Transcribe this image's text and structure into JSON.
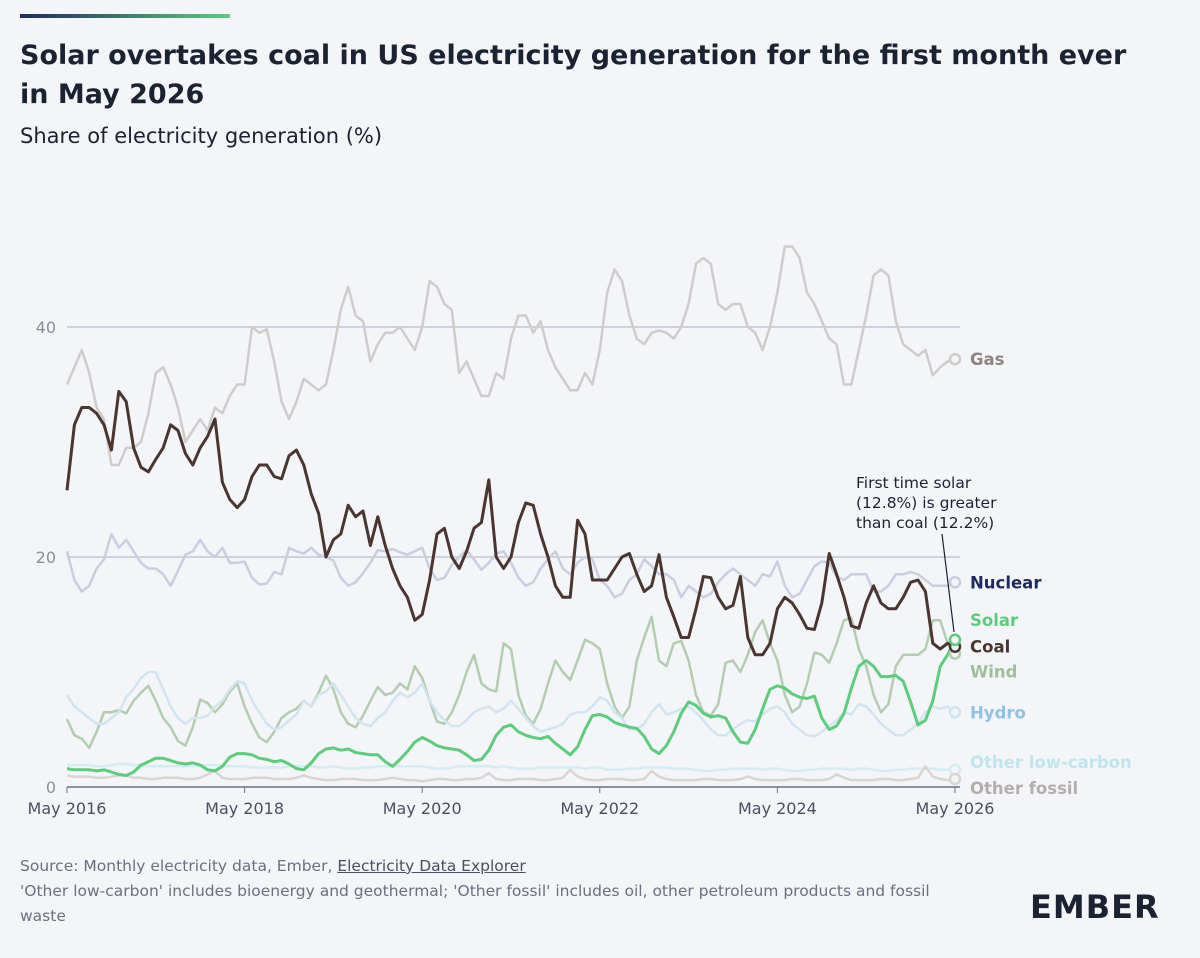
{
  "chart_data": {
    "type": "line",
    "title": "Solar overtakes coal in US electricity generation for the first month ever in May 2026",
    "subtitle": "Share of electricity generation (%)",
    "annotation": [
      "First time solar",
      "(12.8%) is greater",
      "than coal (12.2%)"
    ],
    "source": "Source: Monthly electricity data, Ember,",
    "source_link": "Electricity Data Explorer",
    "note": "'Other low-carbon' includes bioenergy and geothermal; 'Other fossil' includes oil, other petroleum products and fossil waste",
    "logo": "EMBER",
    "x": [
      "2016-05",
      "2016-06",
      "2016-07",
      "2016-08",
      "2016-09",
      "2016-10",
      "2016-11",
      "2016-12",
      "2017-01",
      "2017-02",
      "2017-03",
      "2017-04",
      "2017-05",
      "2017-06",
      "2017-07",
      "2017-08",
      "2017-09",
      "2017-10",
      "2017-11",
      "2017-12",
      "2018-01",
      "2018-02",
      "2018-03",
      "2018-04",
      "2018-05",
      "2018-06",
      "2018-07",
      "2018-08",
      "2018-09",
      "2018-10",
      "2018-11",
      "2018-12",
      "2019-01",
      "2019-02",
      "2019-03",
      "2019-04",
      "2019-05",
      "2019-06",
      "2019-07",
      "2019-08",
      "2019-09",
      "2019-10",
      "2019-11",
      "2019-12",
      "2020-01",
      "2020-02",
      "2020-03",
      "2020-04",
      "2020-05",
      "2020-06",
      "2020-07",
      "2020-08",
      "2020-09",
      "2020-10",
      "2020-11",
      "2020-12",
      "2021-01",
      "2021-02",
      "2021-03",
      "2021-04",
      "2021-05",
      "2021-06",
      "2021-07",
      "2021-08",
      "2021-09",
      "2021-10",
      "2021-11",
      "2021-12",
      "2022-01",
      "2022-02",
      "2022-03",
      "2022-04",
      "2022-05",
      "2022-06",
      "2022-07",
      "2022-08",
      "2022-09",
      "2022-10",
      "2022-11",
      "2022-12",
      "2023-01",
      "2023-02",
      "2023-03",
      "2023-04",
      "2023-05",
      "2023-06",
      "2023-07",
      "2023-08",
      "2023-09",
      "2023-10",
      "2023-11",
      "2023-12",
      "2024-01",
      "2024-02",
      "2024-03",
      "2024-04",
      "2024-05",
      "2024-06",
      "2024-07",
      "2024-08",
      "2024-09",
      "2024-10",
      "2024-11",
      "2024-12",
      "2025-01",
      "2025-02",
      "2025-03",
      "2025-04",
      "2025-05",
      "2025-06",
      "2025-07",
      "2025-08",
      "2025-09",
      "2025-10",
      "2025-11",
      "2025-12",
      "2026-01",
      "2026-02",
      "2026-03",
      "2026-04",
      "2026-05"
    ],
    "xlim": [
      "2016-05",
      "2026-05"
    ],
    "xticks": [
      {
        "value": "2016-05",
        "label": "May 2016"
      },
      {
        "value": "2018-05",
        "label": "May 2018"
      },
      {
        "value": "2020-05",
        "label": "May 2020"
      },
      {
        "value": "2022-05",
        "label": "May 2022"
      },
      {
        "value": "2024-05",
        "label": "May 2024"
      },
      {
        "value": "2026-05",
        "label": "May 2026"
      }
    ],
    "ylim": [
      0,
      50
    ],
    "yticks": [
      0,
      20,
      40
    ],
    "grid": true,
    "series": [
      {
        "name": "Gas",
        "color": "#8e8482",
        "line_color": "#cfcccb",
        "highlight": false,
        "values": [
          35,
          36.5,
          38,
          36,
          33,
          32,
          28,
          28,
          29.5,
          29.5,
          30,
          32.5,
          36,
          36.5,
          35,
          33,
          30,
          31,
          32,
          31,
          33,
          32.5,
          34,
          35,
          35,
          40,
          39.5,
          39.8,
          37,
          33.5,
          32,
          33.5,
          35.5,
          35,
          34.5,
          35,
          38,
          41.5,
          43.5,
          41,
          40.5,
          37,
          38.5,
          39.5,
          39.5,
          40,
          39,
          38,
          40,
          44,
          43.5,
          42,
          41.5,
          36,
          37,
          35.5,
          34,
          34,
          36,
          35.5,
          39,
          41,
          41,
          39.5,
          40.5,
          38,
          36.5,
          35.5,
          34.5,
          34.5,
          36,
          35,
          38,
          43,
          45,
          44,
          41,
          39,
          38.5,
          39.5,
          39.7,
          39.5,
          39,
          40,
          42,
          45.5,
          46,
          45.5,
          42,
          41.5,
          42,
          42,
          40,
          39.5,
          38,
          40,
          43,
          47,
          47,
          46,
          43,
          42,
          40.5,
          39,
          38.5,
          35,
          35,
          38,
          41,
          44.5,
          45,
          44.5,
          40.5,
          38.5,
          38,
          37.5,
          38,
          35.8,
          36.5,
          37,
          37.2
        ]
      },
      {
        "name": "Nuclear",
        "color": "#1d2b5e",
        "line_color": "#cbcde0",
        "highlight": false,
        "values": [
          20.5,
          18,
          17,
          17.5,
          19,
          19.8,
          22,
          20.8,
          21.5,
          20.5,
          19.5,
          19,
          19,
          18.5,
          17.5,
          18.8,
          20.2,
          20.5,
          21.5,
          20.5,
          20,
          20.8,
          19.5,
          19.5,
          19.6,
          18.2,
          17.6,
          17.7,
          18.7,
          18.5,
          20.8,
          20.5,
          20.3,
          20.8,
          20.2,
          20,
          19.7,
          18.2,
          17.5,
          17.8,
          18.6,
          19.5,
          20.6,
          20.5,
          20.7,
          20.4,
          20.2,
          20.5,
          20.8,
          19,
          18,
          18.2,
          19.3,
          20,
          20.6,
          19.8,
          18.9,
          19.5,
          20.3,
          20.5,
          19.5,
          18.2,
          17.5,
          17.8,
          19,
          19.8,
          20.5,
          19,
          18.5,
          19.5,
          20,
          19.8,
          18,
          17.5,
          16.5,
          16.8,
          18,
          18.5,
          19.8,
          19.2,
          18.5,
          18.5,
          18,
          16.5,
          17.5,
          17,
          16.5,
          16.8,
          17.8,
          18.5,
          19,
          18.5,
          18,
          17.5,
          18.5,
          18.3,
          19.6,
          17.5,
          16.5,
          16.8,
          18,
          19.2,
          19.6,
          19.5,
          18.3,
          18,
          18.5,
          18.5,
          18.5,
          17,
          17,
          17.5,
          18.5,
          18.5,
          18.7,
          18.5,
          18,
          17.5,
          17.5,
          17.5,
          17.8
        ]
      },
      {
        "name": "Wind",
        "color": "#9dbf9a",
        "line_color": "#b3cdb1",
        "highlight": false,
        "values": [
          5.9,
          4.5,
          4.2,
          3.4,
          4.8,
          6.5,
          6.5,
          6.7,
          6.4,
          7.5,
          8.2,
          8.8,
          7.5,
          6,
          5.2,
          4,
          3.6,
          5.2,
          7.6,
          7.3,
          6.5,
          7.2,
          8.3,
          9,
          7,
          5.5,
          4.3,
          3.9,
          4.8,
          6,
          6.5,
          6.8,
          7.5,
          7,
          8.2,
          9.7,
          8.5,
          6.5,
          5.5,
          5.2,
          6.2,
          7.5,
          8.7,
          8,
          8.2,
          9,
          8.5,
          10.5,
          9.5,
          7.5,
          5.7,
          5.5,
          6.5,
          8,
          10,
          11.5,
          9,
          8.5,
          8.3,
          12.5,
          12,
          8,
          6.2,
          5.5,
          6.8,
          9,
          11,
          10,
          9.3,
          11,
          12.8,
          12.5,
          12,
          9,
          7,
          6,
          7,
          11,
          13,
          14.8,
          11,
          10.5,
          12.5,
          12.7,
          11,
          8,
          6.5,
          6.2,
          7.2,
          10.8,
          11,
          10,
          11.5,
          13.5,
          14.5,
          12.5,
          11,
          8,
          6.5,
          7,
          9,
          11.7,
          11.5,
          10.8,
          12.5,
          14.5,
          14.7,
          12,
          10.5,
          8,
          6.5,
          7.2,
          10.5,
          11.5,
          11.5,
          11.5,
          12,
          14.5,
          14.5,
          12.5,
          11.6
        ]
      },
      {
        "name": "Hydro",
        "color": "#8fc3e3",
        "line_color": "#d1e5f1",
        "highlight": false,
        "values": [
          8,
          7,
          6.5,
          6,
          5.5,
          5.5,
          6,
          6.5,
          7.8,
          8.5,
          9.5,
          10,
          10,
          8.5,
          7,
          6,
          5.5,
          6,
          6,
          6.2,
          7,
          7.5,
          8.5,
          9.2,
          9,
          7.5,
          6.5,
          5.5,
          5,
          5.2,
          5.8,
          6.3,
          7.5,
          7,
          8,
          8.3,
          9,
          8,
          7,
          6,
          5.5,
          5.3,
          6,
          6.5,
          7.5,
          8.2,
          7.8,
          8.2,
          9,
          7.5,
          6.5,
          5.8,
          5.3,
          5.3,
          5.8,
          6.5,
          6.8,
          7,
          6.5,
          6.8,
          7.5,
          6.8,
          6,
          5.3,
          4.8,
          5,
          5.2,
          5.5,
          6.3,
          6.5,
          6.5,
          7,
          7.8,
          7.5,
          6.5,
          6,
          5,
          5,
          5.5,
          6.5,
          7.2,
          6.3,
          6.5,
          6.8,
          7,
          6.5,
          5.8,
          5,
          4.5,
          4.5,
          5,
          5.5,
          5.8,
          5.7,
          6.3,
          6.8,
          7,
          6.5,
          5.5,
          5,
          4.5,
          4.4,
          4.8,
          5.3,
          5.8,
          6.5,
          6.3,
          7.2,
          7,
          6.3,
          5.5,
          5,
          4.5,
          4.5,
          5,
          5.5,
          6.5,
          7,
          6.8,
          7,
          6.5
        ]
      },
      {
        "name": "Other low-carbon",
        "color": "#bfe5ee",
        "line_color": "#d3edf2",
        "highlight": false,
        "values": [
          1.9,
          1.9,
          1.9,
          1.9,
          1.8,
          1.8,
          1.9,
          2,
          2,
          1.9,
          1.9,
          1.8,
          1.8,
          1.8,
          1.8,
          1.8,
          1.8,
          1.8,
          1.9,
          1.9,
          1.9,
          1.8,
          1.8,
          1.8,
          1.8,
          1.7,
          1.7,
          1.7,
          1.7,
          1.7,
          1.8,
          1.8,
          1.8,
          1.8,
          1.7,
          1.7,
          1.8,
          1.7,
          1.6,
          1.6,
          1.7,
          1.7,
          1.8,
          1.8,
          1.8,
          1.8,
          1.8,
          1.8,
          1.8,
          1.7,
          1.6,
          1.6,
          1.7,
          1.8,
          1.8,
          1.8,
          1.8,
          1.8,
          1.7,
          1.8,
          1.7,
          1.6,
          1.6,
          1.6,
          1.7,
          1.7,
          1.7,
          1.7,
          1.7,
          1.7,
          1.6,
          1.7,
          1.7,
          1.5,
          1.5,
          1.5,
          1.6,
          1.6,
          1.7,
          1.7,
          1.7,
          1.7,
          1.6,
          1.6,
          1.6,
          1.5,
          1.4,
          1.4,
          1.5,
          1.5,
          1.6,
          1.6,
          1.6,
          1.6,
          1.5,
          1.6,
          1.6,
          1.5,
          1.4,
          1.4,
          1.5,
          1.5,
          1.6,
          1.6,
          1.6,
          1.6,
          1.5,
          1.6,
          1.6,
          1.5,
          1.4,
          1.4,
          1.5,
          1.5,
          1.6,
          1.6,
          1.6,
          1.6,
          1.5,
          1.5,
          1.5
        ]
      },
      {
        "name": "Other fossil",
        "color": "#b5aeab",
        "line_color": "#d9d5d3",
        "highlight": false,
        "values": [
          1,
          0.9,
          0.9,
          0.9,
          0.8,
          0.8,
          0.9,
          1,
          1,
          0.8,
          0.8,
          0.7,
          0.7,
          0.8,
          0.8,
          0.8,
          0.7,
          0.7,
          0.8,
          1.1,
          1.4,
          0.8,
          0.7,
          0.7,
          0.7,
          0.8,
          0.8,
          0.8,
          0.7,
          0.7,
          0.7,
          0.8,
          1,
          0.8,
          0.7,
          0.6,
          0.6,
          0.7,
          0.7,
          0.7,
          0.6,
          0.6,
          0.6,
          0.7,
          0.8,
          0.7,
          0.6,
          0.6,
          0.5,
          0.6,
          0.7,
          0.7,
          0.6,
          0.6,
          0.7,
          0.7,
          0.8,
          1.2,
          0.7,
          0.6,
          0.6,
          0.7,
          0.7,
          0.7,
          0.6,
          0.6,
          0.7,
          0.8,
          1.5,
          0.9,
          0.7,
          0.6,
          0.6,
          0.7,
          0.7,
          0.7,
          0.6,
          0.6,
          0.7,
          1.4,
          0.9,
          0.7,
          0.6,
          0.6,
          0.6,
          0.6,
          0.7,
          0.7,
          0.6,
          0.6,
          0.6,
          0.7,
          0.9,
          0.7,
          0.6,
          0.6,
          0.6,
          0.6,
          0.7,
          0.7,
          0.6,
          0.6,
          0.6,
          0.7,
          1.1,
          0.8,
          0.6,
          0.6,
          0.6,
          0.6,
          0.7,
          0.7,
          0.6,
          0.6,
          0.7,
          0.8,
          1.8,
          0.9,
          0.7,
          0.6,
          0.7
        ]
      },
      {
        "name": "Coal",
        "color": "#4a3530",
        "line_color": "#4a3530",
        "highlight": true,
        "values": [
          25.8,
          31.5,
          33,
          33,
          32.5,
          31.5,
          29.3,
          34.4,
          33.5,
          29.5,
          27.8,
          27.4,
          28.5,
          29.5,
          31.5,
          31,
          29,
          28,
          29.5,
          30.5,
          32,
          26.5,
          25,
          24.3,
          25,
          27,
          28,
          28,
          27,
          26.8,
          28.8,
          29.3,
          28,
          25.5,
          23.8,
          20,
          21.5,
          22,
          24.5,
          23.5,
          24,
          21,
          23.5,
          21,
          19,
          17.5,
          16.5,
          14.5,
          15,
          18,
          22,
          22.5,
          20,
          19,
          20.5,
          22.5,
          23,
          26.7,
          20,
          19,
          20,
          23,
          24.7,
          24.5,
          22,
          20,
          17.5,
          16.5,
          16.5,
          23.2,
          22,
          18,
          18,
          18,
          19,
          20,
          20.3,
          18.5,
          17,
          17.5,
          20.2,
          16.5,
          14.8,
          13,
          13,
          15.5,
          18.3,
          18.2,
          16.5,
          15.5,
          15.8,
          18.3,
          13,
          11.5,
          11.5,
          12.5,
          15.5,
          16.5,
          16,
          15,
          13.8,
          13.7,
          16,
          20.3,
          18.5,
          16.5,
          14,
          13.8,
          16,
          17.5,
          16,
          15.5,
          15.5,
          16.5,
          17.8,
          18,
          17,
          12.5,
          12,
          12.5,
          12.2
        ]
      },
      {
        "name": "Solar",
        "color": "#5dcc7d",
        "line_color": "#5dcc7d",
        "highlight": true,
        "values": [
          1.6,
          1.5,
          1.5,
          1.5,
          1.4,
          1.5,
          1.3,
          1.1,
          1,
          1.3,
          1.9,
          2.2,
          2.5,
          2.5,
          2.3,
          2.1,
          2,
          2.1,
          1.9,
          1.5,
          1.4,
          1.8,
          2.6,
          2.9,
          2.9,
          2.8,
          2.5,
          2.4,
          2.2,
          2.3,
          2,
          1.6,
          1.5,
          2.1,
          2.9,
          3.3,
          3.4,
          3.2,
          3.3,
          3,
          2.9,
          2.8,
          2.8,
          2.2,
          1.8,
          2.4,
          3.1,
          3.9,
          4.3,
          4,
          3.6,
          3.4,
          3.3,
          3.2,
          2.8,
          2.3,
          2.4,
          3.2,
          4.5,
          5.2,
          5.4,
          4.8,
          4.5,
          4.3,
          4.2,
          4.4,
          3.8,
          3.3,
          2.8,
          3.5,
          5,
          6.2,
          6.3,
          6.1,
          5.6,
          5.4,
          5.2,
          5.1,
          4.4,
          3.3,
          2.9,
          3.6,
          4.8,
          6.4,
          7.4,
          7.1,
          6.4,
          6.1,
          6.2,
          6,
          4.8,
          3.9,
          3.8,
          5,
          6.8,
          8.5,
          8.8,
          8.6,
          8.1,
          7.8,
          7.7,
          7.9,
          6,
          5,
          5.3,
          6.4,
          8.6,
          10.5,
          11,
          10.5,
          9.6,
          9.6,
          9.7,
          9.2,
          7.4,
          5.4,
          5.8,
          7.5,
          10.5,
          11.5,
          12.8
        ]
      }
    ]
  }
}
